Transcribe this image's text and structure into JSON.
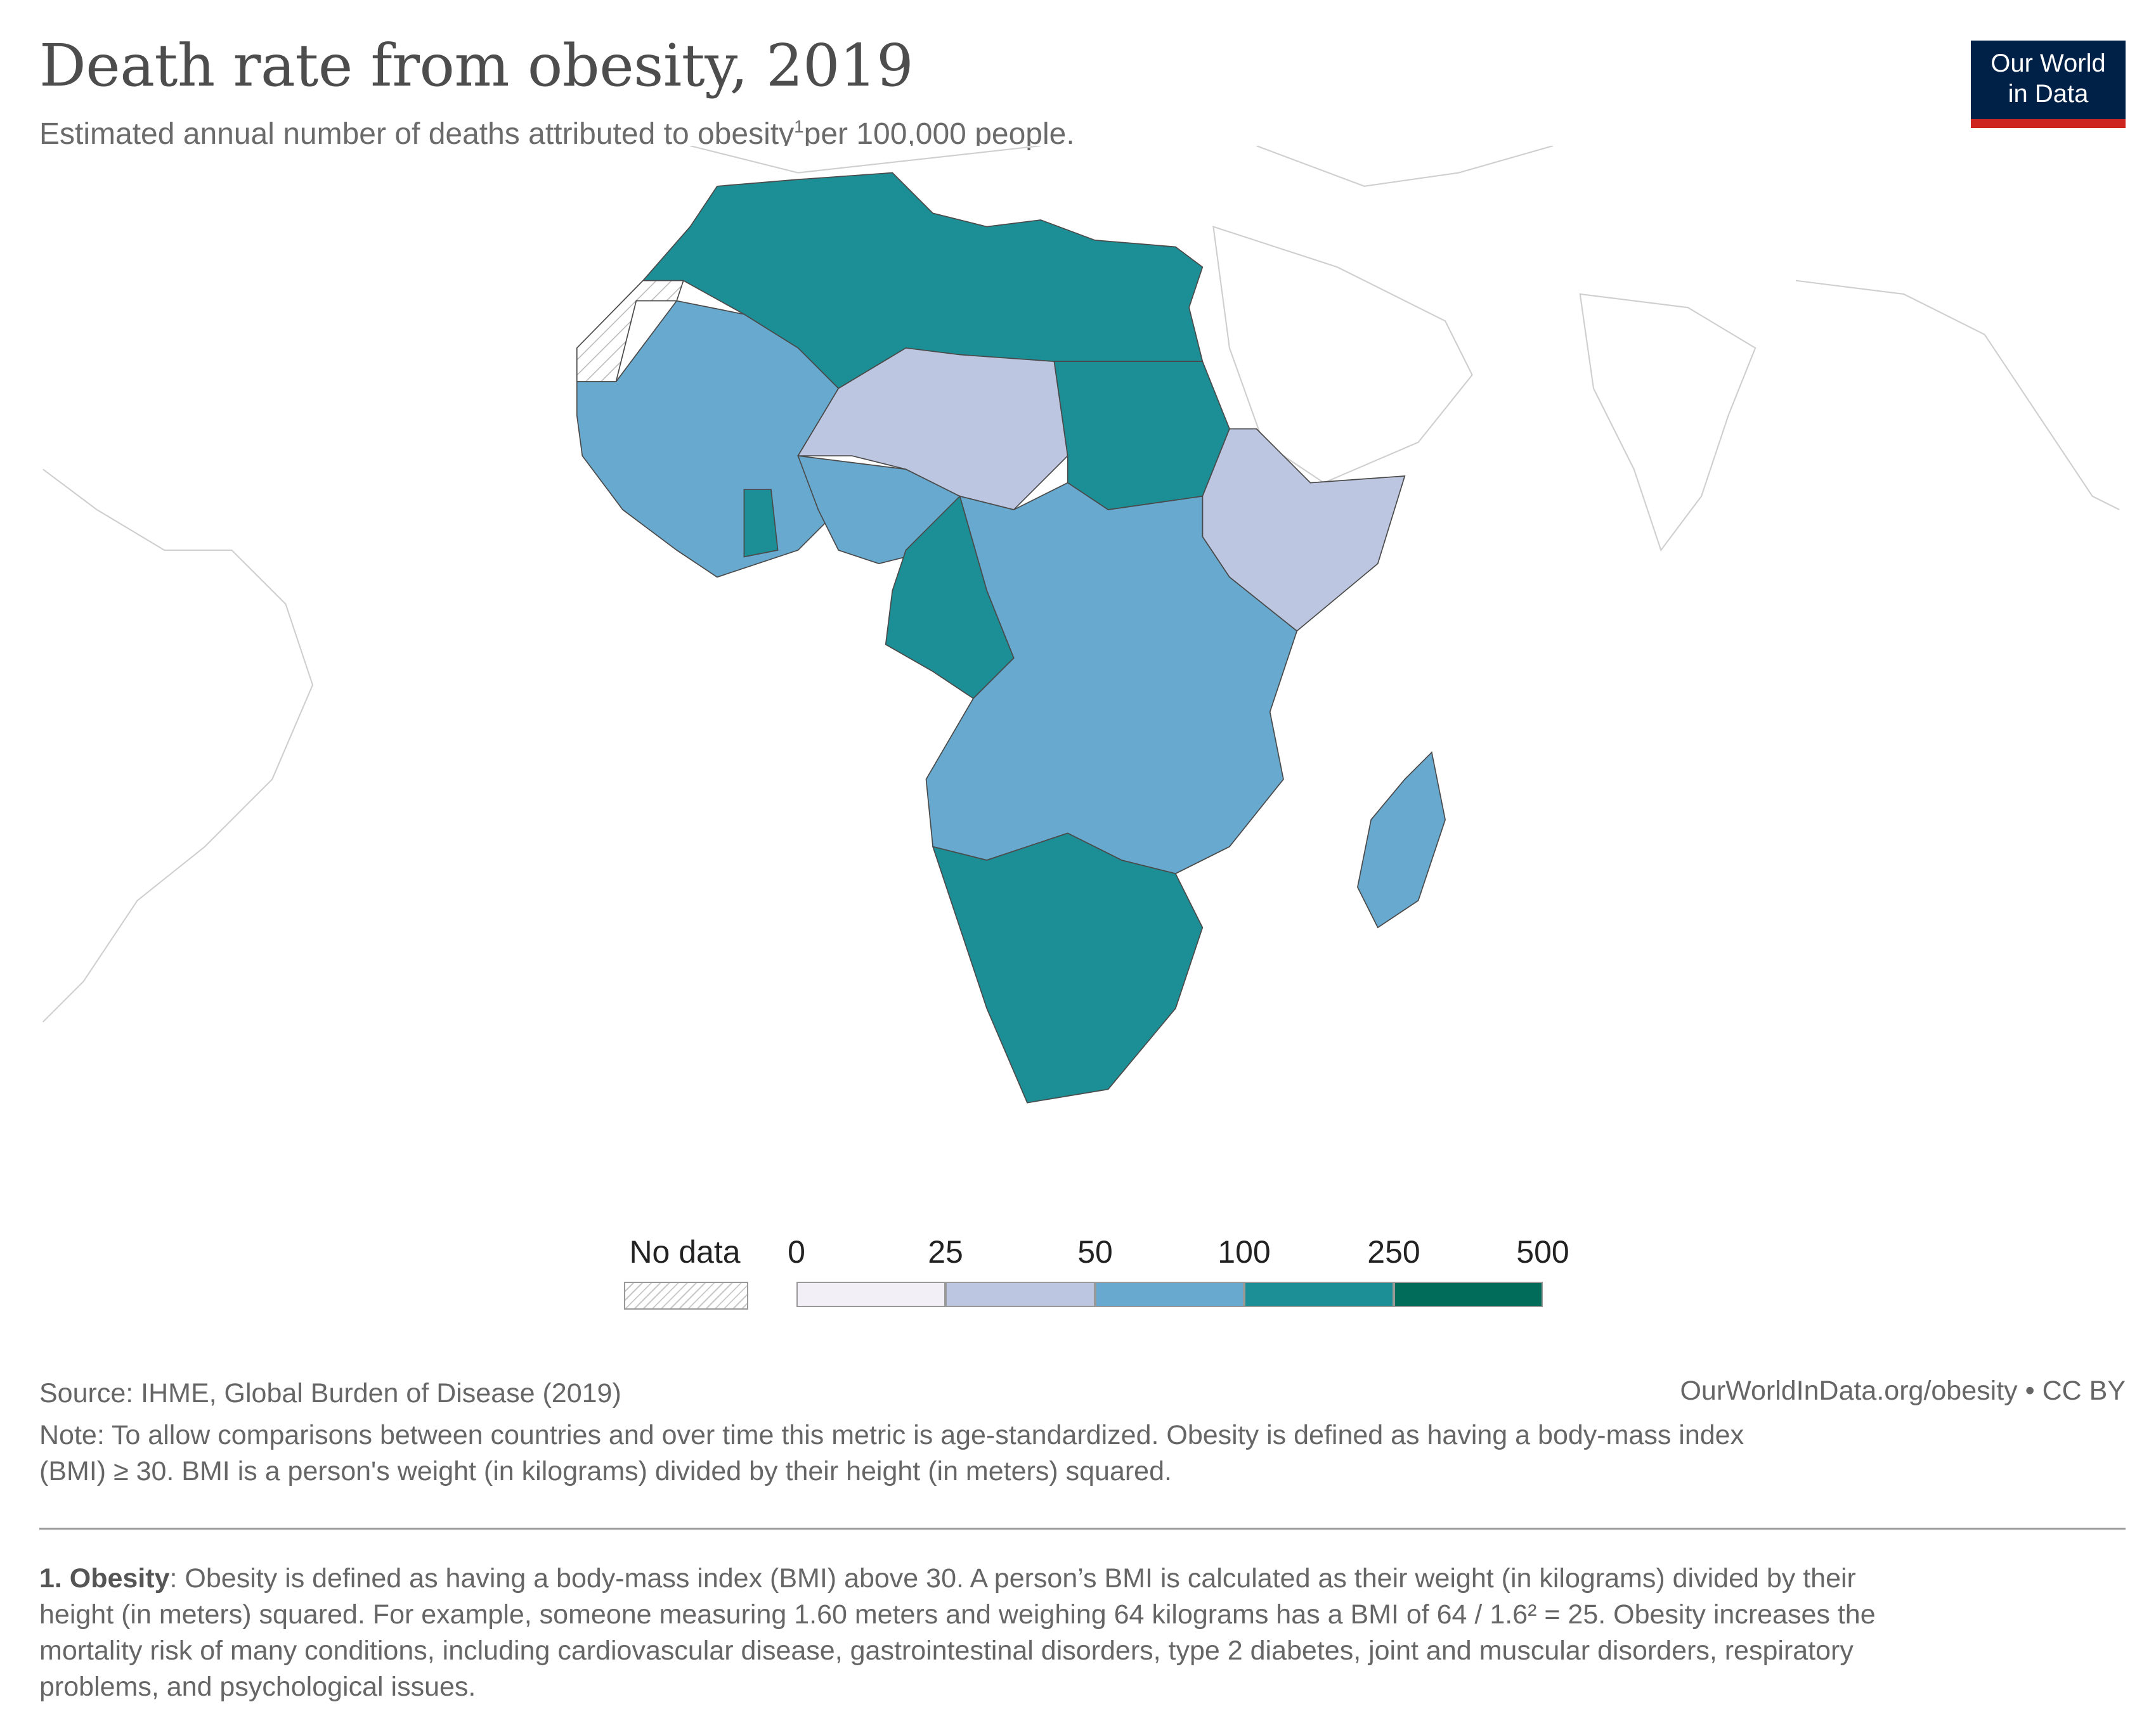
{
  "header": {
    "title": "Death rate from obesity, 2019",
    "subtitle": "Estimated annual number of deaths attributed to obesity",
    "subtitle_ref": "1",
    "subtitle_tail": "per 100,000 people."
  },
  "logo": {
    "line1": "Our World",
    "line2": "in Data",
    "bg": "#002147",
    "accent": "#ce261e"
  },
  "legend": {
    "no_data_label": "No data",
    "breaks": [
      "0",
      "25",
      "50",
      "100",
      "250",
      "500"
    ],
    "colors": [
      "#f2eff7",
      "#bcc6e0",
      "#67a9cf",
      "#1c8f96",
      "#016c59"
    ]
  },
  "map": {
    "region": "Africa",
    "bins": {
      "bin_25_50": "#bcc6e0",
      "bin_50_100": "#67a9cf",
      "bin_100_250": "#1c8f96",
      "no_data": "hatched"
    },
    "countries_100_250": [
      "Morocco",
      "Algeria",
      "Tunisia",
      "Libya",
      "Egypt",
      "Sudan",
      "Ghana",
      "Cameroon",
      "Gabon",
      "Equatorial Guinea",
      "Republic of the Congo",
      "Namibia",
      "Botswana",
      "South Africa",
      "Lesotho",
      "Eswatini"
    ],
    "countries_25_50": [
      "Niger",
      "Chad",
      "Ethiopia",
      "Somalia",
      "Burkina Faso",
      "Burundi"
    ],
    "countries_50_100": [
      "Mauritania",
      "Mali",
      "Senegal",
      "Guinea",
      "Sierra Leone",
      "Liberia",
      "Côte d'Ivoire",
      "Togo",
      "Benin",
      "Nigeria",
      "Central African Republic",
      "South Sudan",
      "Eritrea",
      "Djibouti",
      "Kenya",
      "Uganda",
      "Tanzania",
      "DR Congo",
      "Angola",
      "Zambia",
      "Malawi",
      "Mozambique",
      "Zimbabwe",
      "Madagascar"
    ],
    "countries_no_data": [
      "Western Sahara"
    ]
  },
  "footer": {
    "source": "Source: IHME, Global Burden of Disease (2019)",
    "url": "OurWorldInData.org/obesity • CC BY",
    "note_line1": "Note: To allow comparisons between countries and over time this metric is age-standardized. Obesity is defined as having a body-mass index",
    "note_line2": "(BMI) ≥ 30. BMI is a person's weight (in kilograms) divided by their height (in meters) squared.",
    "footnote_lead": "1. Obesity",
    "footnote_line1": ": Obesity is defined as having a body-mass index (BMI) above 30. A person’s BMI is calculated as their weight (in kilograms) divided by their",
    "footnote_line2": "height (in meters) squared. For example, someone measuring 1.60 meters and weighing 64 kilograms has a BMI of 64 / 1.6² = 25. Obesity increases the",
    "footnote_line3": "mortality risk of many conditions, including cardiovascular disease, gastrointestinal disorders, type 2 diabetes, joint and muscular disorders, respiratory",
    "footnote_line4": "problems, and psychological issues."
  }
}
